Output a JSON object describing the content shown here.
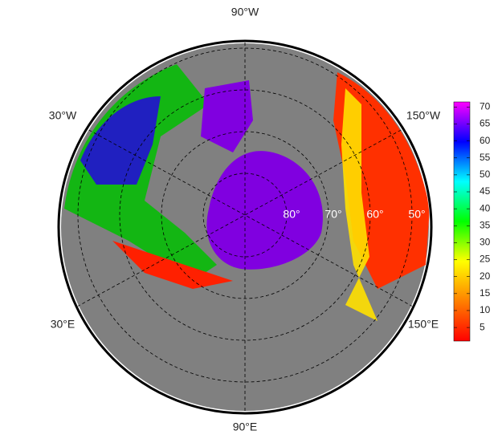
{
  "map": {
    "longitude_labels": [
      "90°W",
      "30°W",
      "150°W",
      "30°E",
      "150°E",
      "90°E"
    ],
    "latitude_labels": [
      "80°",
      "70°",
      "60°",
      "50°"
    ]
  },
  "colorbar": {
    "lim": [
      1,
      71.5
    ],
    "ticks": [
      5,
      10,
      15,
      20,
      25,
      30,
      35,
      40,
      45,
      50,
      55,
      60,
      65,
      70
    ],
    "colors": [
      "#ff0000",
      "#ff8000",
      "#ffff00",
      "#00ff00",
      "#00ffff",
      "#0000ff",
      "#ff00ff"
    ]
  }
}
